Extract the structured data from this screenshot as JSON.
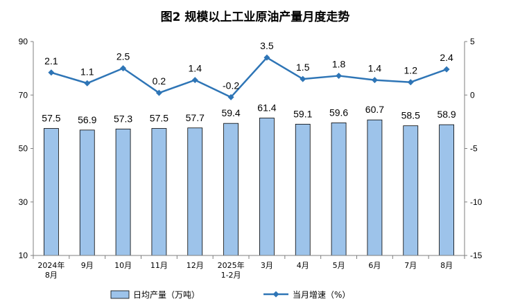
{
  "chart_data": {
    "type": "bar+line",
    "title": "图2  规模以上工业原油产量月度走势",
    "categories": [
      [
        "2024年",
        "8月"
      ],
      [
        "9月"
      ],
      [
        "10月"
      ],
      [
        "11月"
      ],
      [
        "12月"
      ],
      [
        "2025年",
        "1-2月"
      ],
      [
        "3月"
      ],
      [
        "4月"
      ],
      [
        "5月"
      ],
      [
        "6月"
      ],
      [
        "7月"
      ],
      [
        "8月"
      ]
    ],
    "series": [
      {
        "name": "日均产量（万吨）",
        "type": "bar",
        "axis": "left",
        "values": [
          57.5,
          56.9,
          57.3,
          57.5,
          57.7,
          59.4,
          61.4,
          59.1,
          59.6,
          60.7,
          58.5,
          58.9
        ],
        "labels": [
          "57.5",
          "56.9",
          "57.3",
          "57.5",
          "57.7",
          "59.4",
          "61.4",
          "59.1",
          "59.6",
          "60.7",
          "58.5",
          "58.9"
        ]
      },
      {
        "name": "当月增速（%）",
        "type": "line",
        "axis": "right",
        "values": [
          2.1,
          1.1,
          2.5,
          0.2,
          1.4,
          -0.2,
          3.5,
          1.5,
          1.8,
          1.4,
          1.2,
          2.4
        ],
        "labels": [
          "2.1",
          "1.1",
          "2.5",
          "0.2",
          "1.4",
          "-0.2",
          "3.5",
          "1.5",
          "1.8",
          "1.4",
          "1.2",
          "2.4"
        ]
      }
    ],
    "left_axis": {
      "min": 10,
      "max": 90,
      "ticks": [
        "10",
        "30",
        "50",
        "70",
        "90"
      ]
    },
    "right_axis": {
      "min": -15,
      "max": 5,
      "ticks": [
        "-15",
        "-10",
        "-5",
        "0",
        "5"
      ]
    },
    "grid": false,
    "legend_position": "bottom",
    "colors": {
      "bar_fill": "#9dc3ea",
      "bar_stroke": "#000000",
      "line": "#2e75b6",
      "axis": "#7f7f7f"
    }
  }
}
